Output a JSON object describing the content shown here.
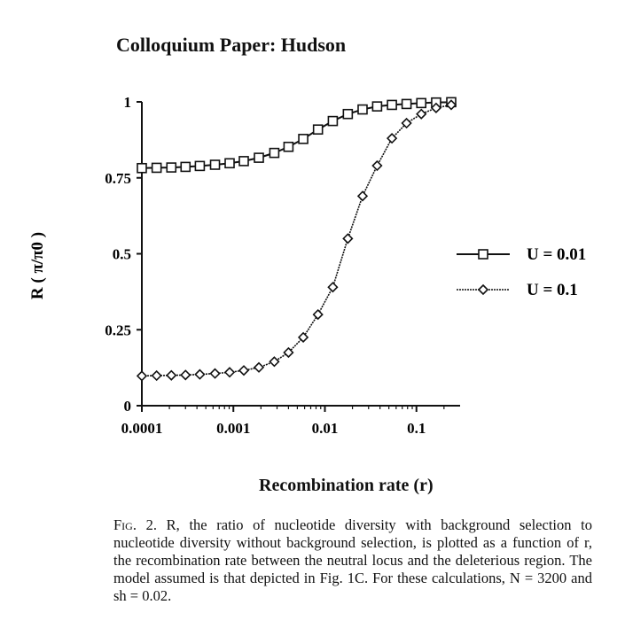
{
  "header": "Colloquium Paper: Hudson",
  "caption": {
    "fig_label": "Fig. 2.",
    "text": "R, the ratio of nucleotide diversity with background selection to nucleotide diversity without background selection, is plotted as a function of r, the recombination rate between the neutral locus and the deleterious region. The model assumed is that depicted in Fig. 1C. For these calculations, N = 3200 and sh = 0.02."
  },
  "chart_data": {
    "type": "line",
    "xscale": "log",
    "xlim": [
      0.0001,
      0.3
    ],
    "ylim": [
      0,
      1
    ],
    "xlabel": "Recombination rate (r)",
    "ylabel": "R ( π/π0 )",
    "x_ticks": [
      "0.0001",
      "0.001",
      "0.01",
      "0.1"
    ],
    "y_ticks": [
      "0",
      "0.25",
      "0.5",
      "0.75",
      "1"
    ],
    "legend_position": "right",
    "x": [
      0.0001,
      0.000145,
      0.00021,
      0.0003,
      0.00043,
      0.00063,
      0.00091,
      0.0013,
      0.0019,
      0.0028,
      0.004,
      0.0058,
      0.0084,
      0.0122,
      0.0178,
      0.0258,
      0.0372,
      0.054,
      0.078,
      0.113,
      0.164,
      0.24
    ],
    "series": [
      {
        "name": "U = 0.01",
        "marker": "square",
        "values": [
          0.782,
          0.783,
          0.784,
          0.786,
          0.789,
          0.793,
          0.798,
          0.805,
          0.816,
          0.832,
          0.852,
          0.878,
          0.909,
          0.937,
          0.96,
          0.975,
          0.985,
          0.99,
          0.993,
          0.996,
          0.998,
          0.999
        ]
      },
      {
        "name": "U = 0.1",
        "marker": "diamond",
        "values": [
          0.098,
          0.099,
          0.1,
          0.101,
          0.103,
          0.106,
          0.11,
          0.116,
          0.126,
          0.145,
          0.175,
          0.225,
          0.3,
          0.39,
          0.55,
          0.69,
          0.79,
          0.88,
          0.93,
          0.96,
          0.98,
          0.99
        ]
      }
    ]
  }
}
